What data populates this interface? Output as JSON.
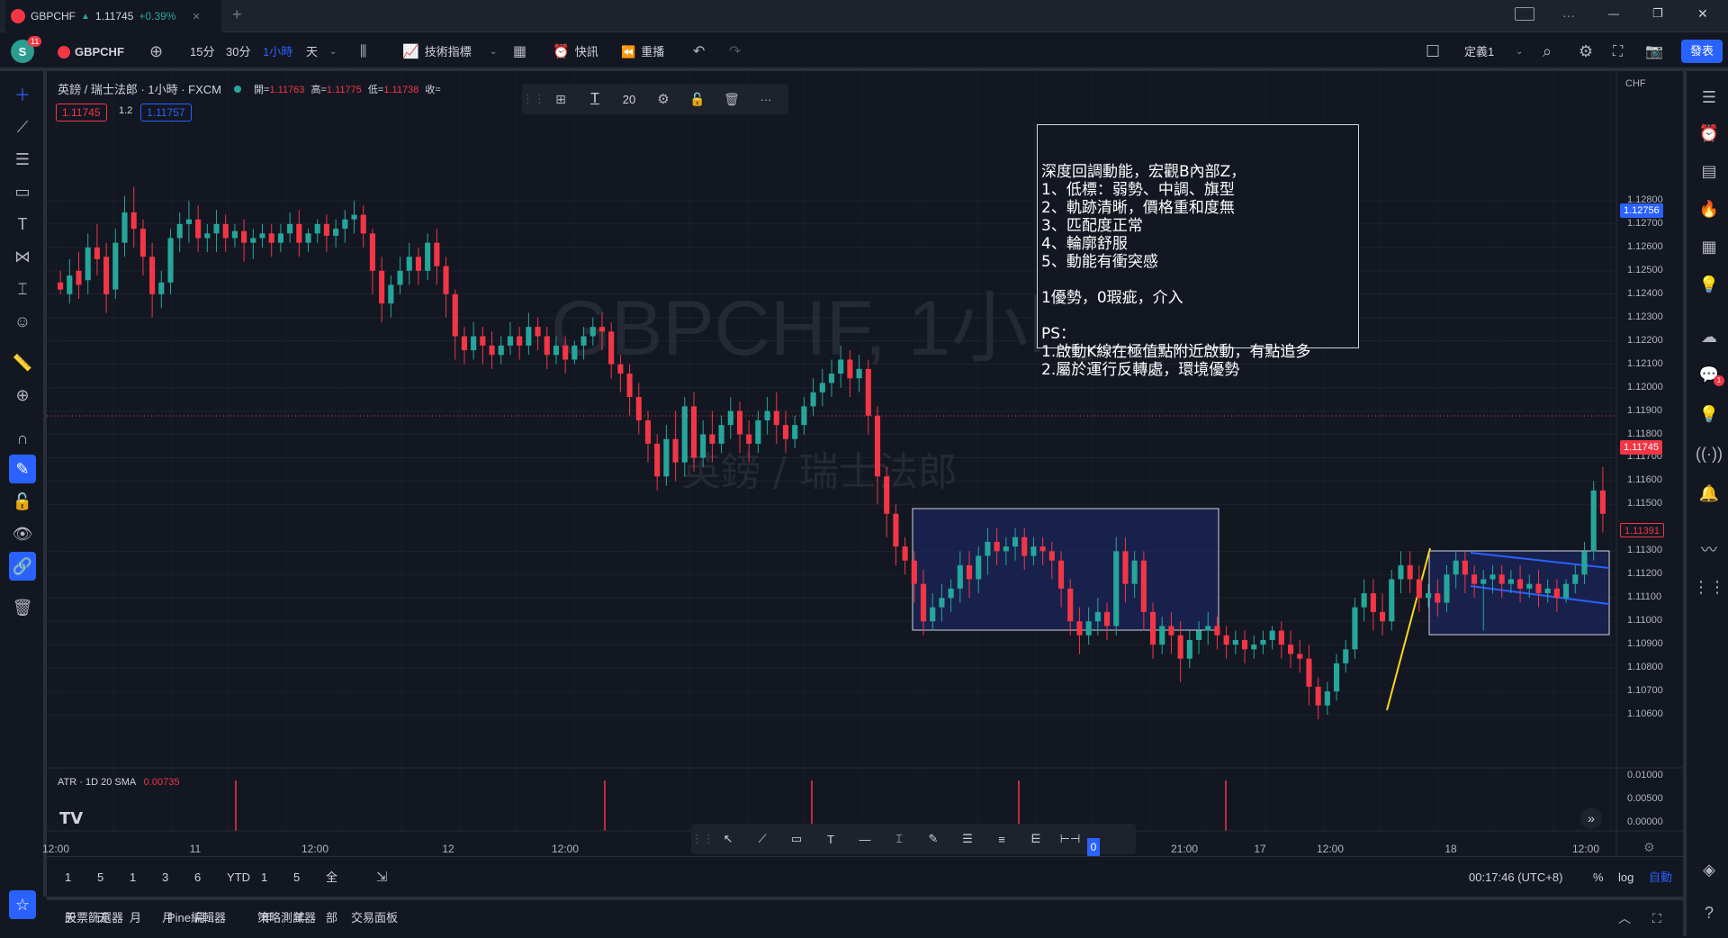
{
  "tab": {
    "symbol": "GBPCHF",
    "arrow": "▲",
    "price": "1.11745",
    "change": "+0.39%",
    "close": "✕",
    "add": "+"
  },
  "window": {
    "more": "···",
    "min": "—",
    "max": "❐",
    "close": "✕"
  },
  "toolbar": {
    "avatar": "S",
    "avatar_badge": "11",
    "symbol": "GBPCHF",
    "intervals": [
      "15分",
      "30分",
      "1小時",
      "天"
    ],
    "active_interval": "1小時",
    "indicators": "技術指標",
    "alerts": "快訊",
    "replay": "重播",
    "layout_name": "定義1",
    "publish": "發表"
  },
  "legend": {
    "title": "英鎊 / 瑞士法郎 · 1小時 · FXCM",
    "open_label": "開=",
    "open": "1.11763",
    "high_label": "高=",
    "high": "1.11775",
    "low_label": "低=",
    "low": "1.11738",
    "close_label": "收=",
    "bid": "1.11745",
    "spread": "1.2",
    "ask": "1.11757"
  },
  "text_toolbar": {
    "font_size": "20"
  },
  "watermark": {
    "line1": "GBPCHF, 1小時",
    "line2": "英鎊 / 瑞士法郎"
  },
  "note": {
    "lines": [
      "深度回調動能，宏觀B內部Z，",
      "1、低標：弱勢、中調、旗型",
      "2、軌跡清晰，價格重和度無",
      "3、匹配度正常",
      "4、輪廓舒服",
      "5、動能有衝突感",
      "",
      "1優勢，0瑕疵，介入",
      "",
      "PS：",
      "1.啟動K線在極值點附近啟動，有點追多",
      "2.屬於運行反轉處，環境優勢"
    ]
  },
  "price_axis": {
    "currency": "CHF",
    "labels": [
      "1.12800",
      "1.12700",
      "1.12600",
      "1.12500",
      "1.12400",
      "1.12300",
      "1.12200",
      "1.12100",
      "1.12000",
      "1.11900",
      "1.11800",
      "1.11700",
      "1.11600",
      "1.11500",
      "1.11300",
      "1.11200",
      "1.11100",
      "1.11000",
      "1.10900",
      "1.10800",
      "1.10700",
      "1.10600"
    ],
    "badge_ask": "1.12756",
    "badge_last": "1.11745",
    "badge_line": "1.11391"
  },
  "atr": {
    "label": "ATR · 1D 20 SMA",
    "value": "0.00735",
    "axis": [
      "0.01000",
      "0.00500",
      "0.00000"
    ]
  },
  "time_axis": {
    "labels": [
      "12:00",
      "11",
      "12:00",
      "12",
      "12:00",
      "21:00",
      "17",
      "12:00",
      "18",
      "12:00"
    ],
    "cursor": "0"
  },
  "bottom_ranges": [
    "1天",
    "5天",
    "1月",
    "3月",
    "6月",
    "YTD",
    "1年",
    "5年",
    "全部"
  ],
  "bottom_right": {
    "clock": "00:17:46 (UTC+8)",
    "percent": "%",
    "log": "log",
    "auto": "自動"
  },
  "panels": [
    "股票篩選器",
    "Pine編輯器",
    "策略測試器",
    "交易面板"
  ],
  "colors": {
    "up": "#26a69a",
    "down": "#f23645",
    "box": "#1e2a6e",
    "accent": "#2962ff"
  },
  "chart_data": {
    "type": "candlestick",
    "title": "英鎊 / 瑞士法郎 · 1小時 · FXCM",
    "ylim": [
      1.1055,
      1.129
    ],
    "x_labels": [
      "12:00",
      "11",
      "12:00",
      "12",
      "12:00",
      "21:00",
      "17",
      "12:00",
      "18",
      "12:00"
    ],
    "candles": [
      [
        1.1245,
        1.125,
        1.1242,
        1.124
      ],
      [
        1.124,
        1.1255,
        1.1248,
        1.1236
      ],
      [
        1.125,
        1.1258,
        1.1244,
        1.1238
      ],
      [
        1.1246,
        1.1266,
        1.126,
        1.124
      ],
      [
        1.126,
        1.127,
        1.1255,
        1.1248
      ],
      [
        1.1256,
        1.1262,
        1.124,
        1.1232
      ],
      [
        1.1242,
        1.1268,
        1.1262,
        1.1238
      ],
      [
        1.1262,
        1.1282,
        1.1275,
        1.1256
      ],
      [
        1.1275,
        1.1286,
        1.1268,
        1.126
      ],
      [
        1.1268,
        1.1272,
        1.1256,
        1.1248
      ],
      [
        1.1256,
        1.1262,
        1.124,
        1.123
      ],
      [
        1.124,
        1.125,
        1.1245,
        1.1234
      ],
      [
        1.1245,
        1.1268,
        1.1264,
        1.124
      ],
      [
        1.1264,
        1.1275,
        1.127,
        1.1258
      ],
      [
        1.127,
        1.128,
        1.1272,
        1.1262
      ],
      [
        1.1272,
        1.1278,
        1.1264,
        1.1258
      ],
      [
        1.1264,
        1.127,
        1.1266,
        1.1258
      ],
      [
        1.1266,
        1.1276,
        1.127,
        1.1258
      ],
      [
        1.127,
        1.1274,
        1.1264,
        1.1258
      ],
      [
        1.1264,
        1.127,
        1.1267,
        1.126
      ],
      [
        1.1267,
        1.1272,
        1.1262,
        1.1254
      ],
      [
        1.1262,
        1.1268,
        1.1264,
        1.1255
      ],
      [
        1.1264,
        1.127,
        1.1266,
        1.126
      ],
      [
        1.1266,
        1.127,
        1.1262,
        1.1256
      ],
      [
        1.1262,
        1.127,
        1.1266,
        1.1258
      ],
      [
        1.1266,
        1.1275,
        1.127,
        1.1262
      ],
      [
        1.127,
        1.1276,
        1.1262,
        1.1256
      ],
      [
        1.1262,
        1.1268,
        1.1266,
        1.1258
      ],
      [
        1.1266,
        1.1272,
        1.127,
        1.1262
      ],
      [
        1.127,
        1.1274,
        1.1265,
        1.1258
      ],
      [
        1.1265,
        1.1272,
        1.1268,
        1.126
      ],
      [
        1.1268,
        1.1276,
        1.1272,
        1.1262
      ],
      [
        1.1272,
        1.128,
        1.1274,
        1.1266
      ],
      [
        1.1274,
        1.1278,
        1.1266,
        1.126
      ],
      [
        1.1266,
        1.1268,
        1.125,
        1.124
      ],
      [
        1.125,
        1.1256,
        1.1236,
        1.1228
      ],
      [
        1.1236,
        1.1248,
        1.1244,
        1.123
      ],
      [
        1.1244,
        1.1256,
        1.125,
        1.124
      ],
      [
        1.125,
        1.1262,
        1.1256,
        1.1244
      ],
      [
        1.1256,
        1.126,
        1.125,
        1.1244
      ],
      [
        1.125,
        1.1266,
        1.1262,
        1.1246
      ],
      [
        1.1262,
        1.1268,
        1.1252,
        1.1244
      ],
      [
        1.1252,
        1.1256,
        1.124,
        1.123
      ],
      [
        1.124,
        1.1242,
        1.1222,
        1.1212
      ],
      [
        1.1222,
        1.1226,
        1.1216,
        1.121
      ],
      [
        1.1216,
        1.1228,
        1.1222,
        1.1212
      ],
      [
        1.1222,
        1.1226,
        1.1218,
        1.121
      ],
      [
        1.1218,
        1.1224,
        1.1214,
        1.1208
      ],
      [
        1.1214,
        1.1222,
        1.1218,
        1.121
      ],
      [
        1.1218,
        1.1228,
        1.1222,
        1.1214
      ],
      [
        1.1222,
        1.1226,
        1.1218,
        1.1212
      ],
      [
        1.1218,
        1.1232,
        1.1226,
        1.1214
      ],
      [
        1.1226,
        1.123,
        1.1222,
        1.1216
      ],
      [
        1.1222,
        1.1226,
        1.1214,
        1.1208
      ],
      [
        1.1214,
        1.1222,
        1.1218,
        1.121
      ],
      [
        1.1218,
        1.1222,
        1.1212,
        1.1206
      ],
      [
        1.1212,
        1.122,
        1.1218,
        1.121
      ],
      [
        1.1218,
        1.1226,
        1.1222,
        1.1212
      ],
      [
        1.1222,
        1.123,
        1.1226,
        1.1218
      ],
      [
        1.1226,
        1.1232,
        1.1224,
        1.1216
      ],
      [
        1.1224,
        1.1228,
        1.121,
        1.1204
      ],
      [
        1.121,
        1.1214,
        1.1206,
        1.1198
      ],
      [
        1.1206,
        1.121,
        1.1196,
        1.1188
      ],
      [
        1.1196,
        1.1202,
        1.1186,
        1.118
      ],
      [
        1.1186,
        1.119,
        1.1176,
        1.1168
      ],
      [
        1.1176,
        1.118,
        1.1162,
        1.1156
      ],
      [
        1.1162,
        1.1184,
        1.1178,
        1.1158
      ],
      [
        1.1178,
        1.119,
        1.1168,
        1.116
      ],
      [
        1.1168,
        1.1196,
        1.1192,
        1.1162
      ],
      [
        1.1192,
        1.1198,
        1.117,
        1.1164
      ],
      [
        1.117,
        1.1186,
        1.118,
        1.1166
      ],
      [
        1.118,
        1.119,
        1.1176,
        1.1168
      ],
      [
        1.1176,
        1.1188,
        1.1184,
        1.1172
      ],
      [
        1.1184,
        1.1196,
        1.119,
        1.1178
      ],
      [
        1.119,
        1.1194,
        1.118,
        1.1172
      ],
      [
        1.118,
        1.1186,
        1.1176,
        1.1168
      ],
      [
        1.1176,
        1.119,
        1.1186,
        1.1172
      ],
      [
        1.1186,
        1.1196,
        1.119,
        1.118
      ],
      [
        1.119,
        1.1198,
        1.1184,
        1.1176
      ],
      [
        1.1184,
        1.119,
        1.1178,
        1.1172
      ],
      [
        1.1178,
        1.1188,
        1.1184,
        1.1174
      ],
      [
        1.1184,
        1.1196,
        1.1192,
        1.118
      ],
      [
        1.1192,
        1.1204,
        1.1198,
        1.1188
      ],
      [
        1.1198,
        1.1208,
        1.1202,
        1.1192
      ],
      [
        1.1202,
        1.1212,
        1.1206,
        1.1196
      ],
      [
        1.1206,
        1.1218,
        1.1212,
        1.12
      ],
      [
        1.1212,
        1.1216,
        1.1204,
        1.1196
      ],
      [
        1.1204,
        1.1214,
        1.1208,
        1.1198
      ],
      [
        1.1208,
        1.1212,
        1.1188,
        1.118
      ],
      [
        1.1188,
        1.1192,
        1.1162,
        1.115
      ],
      [
        1.1162,
        1.1166,
        1.1146,
        1.1136
      ],
      [
        1.1146,
        1.115,
        1.1132,
        1.1124
      ],
      [
        1.1132,
        1.1136,
        1.1126,
        1.112
      ],
      [
        1.1126,
        1.113,
        1.1116,
        1.1108
      ],
      [
        1.1116,
        1.1122,
        1.11,
        1.1094
      ],
      [
        1.11,
        1.1112,
        1.1106,
        1.1096
      ],
      [
        1.1106,
        1.1116,
        1.111,
        1.11
      ],
      [
        1.111,
        1.1118,
        1.1114,
        1.1104
      ],
      [
        1.1114,
        1.113,
        1.1124,
        1.1108
      ],
      [
        1.1124,
        1.113,
        1.1118,
        1.111
      ],
      [
        1.1118,
        1.1132,
        1.1128,
        1.1112
      ],
      [
        1.1128,
        1.114,
        1.1134,
        1.112
      ],
      [
        1.1134,
        1.114,
        1.113,
        1.1124
      ],
      [
        1.113,
        1.1136,
        1.1132,
        1.1124
      ],
      [
        1.1132,
        1.114,
        1.1136,
        1.1126
      ],
      [
        1.1136,
        1.114,
        1.1128,
        1.1122
      ],
      [
        1.1128,
        1.1136,
        1.1132,
        1.1124
      ],
      [
        1.1132,
        1.1136,
        1.113,
        1.1124
      ],
      [
        1.113,
        1.1134,
        1.1126,
        1.1118
      ],
      [
        1.1126,
        1.113,
        1.1114,
        1.1106
      ],
      [
        1.1114,
        1.1118,
        1.11,
        1.1094
      ],
      [
        1.11,
        1.1106,
        1.1094,
        1.1086
      ],
      [
        1.1094,
        1.1106,
        1.11,
        1.109
      ],
      [
        1.11,
        1.111,
        1.1104,
        1.1094
      ],
      [
        1.1104,
        1.1108,
        1.1098,
        1.1092
      ],
      [
        1.1098,
        1.1136,
        1.113,
        1.1094
      ],
      [
        1.113,
        1.1136,
        1.1116,
        1.1108
      ],
      [
        1.1116,
        1.113,
        1.1126,
        1.111
      ],
      [
        1.1126,
        1.113,
        1.1104,
        1.1096
      ],
      [
        1.1104,
        1.1108,
        1.109,
        1.1084
      ],
      [
        1.109,
        1.1102,
        1.1098,
        1.1086
      ],
      [
        1.1098,
        1.1104,
        1.1094,
        1.1086
      ],
      [
        1.1094,
        1.11,
        1.1084,
        1.1074
      ],
      [
        1.1084,
        1.1096,
        1.1092,
        1.108
      ],
      [
        1.1092,
        1.11,
        1.1096,
        1.1086
      ],
      [
        1.1096,
        1.1104,
        1.1098,
        1.109
      ],
      [
        1.1098,
        1.1102,
        1.1094,
        1.1088
      ],
      [
        1.1094,
        1.1098,
        1.109,
        1.1084
      ],
      [
        1.109,
        1.1096,
        1.1092,
        1.1086
      ],
      [
        1.1092,
        1.1096,
        1.1088,
        1.1082
      ],
      [
        1.1088,
        1.1094,
        1.109,
        1.1084
      ],
      [
        1.109,
        1.1096,
        1.1092,
        1.1086
      ],
      [
        1.1092,
        1.1098,
        1.1096,
        1.1088
      ],
      [
        1.1096,
        1.11,
        1.109,
        1.1084
      ],
      [
        1.109,
        1.1096,
        1.1086,
        1.108
      ],
      [
        1.1086,
        1.1092,
        1.1084,
        1.1078
      ],
      [
        1.1084,
        1.109,
        1.1072,
        1.1064
      ],
      [
        1.1072,
        1.1076,
        1.1064,
        1.1058
      ],
      [
        1.1064,
        1.1074,
        1.107,
        1.106
      ],
      [
        1.107,
        1.1086,
        1.1082,
        1.1066
      ],
      [
        1.1082,
        1.1092,
        1.1088,
        1.1078
      ],
      [
        1.1088,
        1.111,
        1.1106,
        1.1084
      ],
      [
        1.1106,
        1.1118,
        1.1112,
        1.11
      ],
      [
        1.1112,
        1.1118,
        1.1104,
        1.1096
      ],
      [
        1.1104,
        1.1112,
        1.11,
        1.1094
      ],
      [
        1.11,
        1.1122,
        1.1118,
        1.1096
      ],
      [
        1.1118,
        1.113,
        1.1124,
        1.1112
      ],
      [
        1.1124,
        1.113,
        1.1118,
        1.1112
      ],
      [
        1.1118,
        1.1124,
        1.111,
        1.1104
      ],
      [
        1.111,
        1.1116,
        1.1112,
        1.1106
      ],
      [
        1.1112,
        1.1118,
        1.1108,
        1.1102
      ],
      [
        1.1108,
        1.1124,
        1.112,
        1.1104
      ],
      [
        1.112,
        1.113,
        1.1126,
        1.1114
      ],
      [
        1.1126,
        1.113,
        1.112,
        1.1112
      ],
      [
        1.112,
        1.1124,
        1.1116,
        1.111
      ],
      [
        1.1116,
        1.1122,
        1.1118,
        1.1096
      ],
      [
        1.1118,
        1.1124,
        1.112,
        1.1112
      ],
      [
        1.112,
        1.1124,
        1.1116,
        1.111
      ],
      [
        1.1116,
        1.1122,
        1.1118,
        1.1112
      ],
      [
        1.1118,
        1.1124,
        1.1114,
        1.1108
      ],
      [
        1.1114,
        1.112,
        1.1116,
        1.111
      ],
      [
        1.1116,
        1.1122,
        1.1112,
        1.1106
      ],
      [
        1.1112,
        1.1118,
        1.1114,
        1.1108
      ],
      [
        1.1114,
        1.1118,
        1.111,
        1.1104
      ],
      [
        1.111,
        1.1118,
        1.1116,
        1.1108
      ],
      [
        1.1116,
        1.1124,
        1.112,
        1.1112
      ],
      [
        1.112,
        1.1134,
        1.113,
        1.1116
      ],
      [
        1.113,
        1.116,
        1.1156,
        1.1126
      ],
      [
        1.1156,
        1.1166,
        1.1146,
        1.1138
      ]
    ]
  }
}
